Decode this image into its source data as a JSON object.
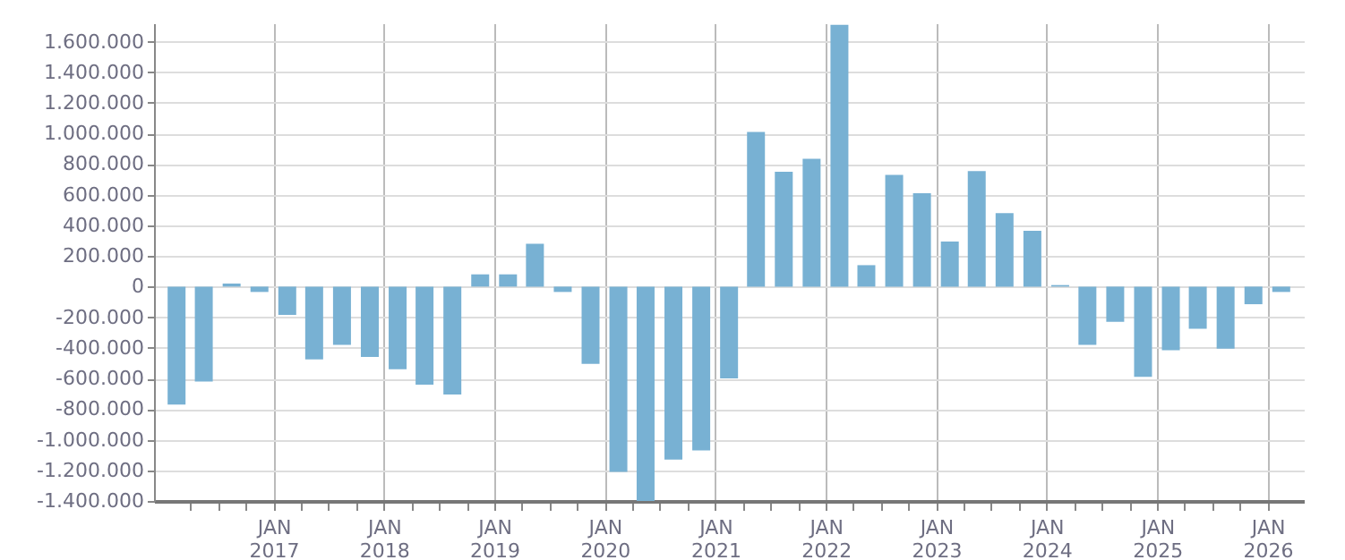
{
  "chart_data": {
    "type": "bar",
    "x": [
      "2016-02-15",
      "2016-05-15",
      "2016-08-15",
      "2016-11-15",
      "2017-02-15",
      "2017-05-15",
      "2017-08-15",
      "2017-11-15",
      "2018-02-15",
      "2018-05-15",
      "2018-08-15",
      "2018-11-15",
      "2019-02-15",
      "2019-05-15",
      "2019-08-15",
      "2019-11-15",
      "2020-02-15",
      "2020-05-15",
      "2020-08-15",
      "2020-11-15",
      "2021-02-15",
      "2021-05-15",
      "2021-08-15",
      "2021-11-15",
      "2022-02-15",
      "2022-05-15",
      "2022-08-15",
      "2022-11-15",
      "2023-02-15",
      "2023-05-15",
      "2023-08-15",
      "2023-11-15",
      "2024-02-15",
      "2024-05-15",
      "2024-08-15",
      "2024-11-15",
      "2025-02-15",
      "2025-05-15",
      "2025-08-15",
      "2025-11-15",
      "2026-02-15"
    ],
    "values": [
      -770000,
      -620000,
      20000,
      -35000,
      -185000,
      -475000,
      -380000,
      -460000,
      -540000,
      -640000,
      -705000,
      80000,
      80000,
      280000,
      -35000,
      -505000,
      -1210000,
      -1400000,
      -1130000,
      -1070000,
      -600000,
      1010000,
      750000,
      835000,
      1710000,
      140000,
      730000,
      610000,
      295000,
      755000,
      480000,
      365000,
      10000,
      -380000,
      -230000,
      -590000,
      -415000,
      -275000,
      -405000,
      -115000,
      -35000
    ],
    "color": "#78b1d3",
    "xlim": [
      "2016-01-01",
      "2026-04-01"
    ],
    "xticks": [
      {
        "value": "2016-04-01",
        "label": null
      },
      {
        "value": "2016-07-01",
        "label": null
      },
      {
        "value": "2016-10-01",
        "label": null
      },
      {
        "value": "2017-01-01",
        "label": "JAN\n2017"
      },
      {
        "value": "2017-04-01",
        "label": null
      },
      {
        "value": "2017-07-01",
        "label": null
      },
      {
        "value": "2017-10-01",
        "label": null
      },
      {
        "value": "2018-01-01",
        "label": "JAN\n2018"
      },
      {
        "value": "2018-04-01",
        "label": null
      },
      {
        "value": "2018-07-01",
        "label": null
      },
      {
        "value": "2018-10-01",
        "label": null
      },
      {
        "value": "2019-01-01",
        "label": "JAN\n2019"
      },
      {
        "value": "2019-04-01",
        "label": null
      },
      {
        "value": "2019-07-01",
        "label": null
      },
      {
        "value": "2019-10-01",
        "label": null
      },
      {
        "value": "2020-01-01",
        "label": "JAN\n2020"
      },
      {
        "value": "2020-04-01",
        "label": null
      },
      {
        "value": "2020-07-01",
        "label": null
      },
      {
        "value": "2020-10-01",
        "label": null
      },
      {
        "value": "2021-01-01",
        "label": "JAN\n2021"
      },
      {
        "value": "2021-04-01",
        "label": null
      },
      {
        "value": "2021-07-01",
        "label": null
      },
      {
        "value": "2021-10-01",
        "label": null
      },
      {
        "value": "2022-01-01",
        "label": "JAN\n2022"
      },
      {
        "value": "2022-04-01",
        "label": null
      },
      {
        "value": "2022-07-01",
        "label": null
      },
      {
        "value": "2022-10-01",
        "label": null
      },
      {
        "value": "2023-01-01",
        "label": "JAN\n2023"
      },
      {
        "value": "2023-04-01",
        "label": null
      },
      {
        "value": "2023-07-01",
        "label": null
      },
      {
        "value": "2023-10-01",
        "label": null
      },
      {
        "value": "2024-01-01",
        "label": "JAN\n2024"
      },
      {
        "value": "2024-04-01",
        "label": null
      },
      {
        "value": "2024-07-01",
        "label": null
      },
      {
        "value": "2024-10-01",
        "label": null
      },
      {
        "value": "2025-01-01",
        "label": "JAN\n2025"
      },
      {
        "value": "2025-04-01",
        "label": null
      },
      {
        "value": "2025-07-01",
        "label": null
      },
      {
        "value": "2025-10-01",
        "label": null
      },
      {
        "value": "2026-01-01",
        "label": "JAN\n2026"
      }
    ],
    "ylim": [
      -1400000,
      1720000
    ],
    "yticks": [
      {
        "value": -1400000,
        "label": "-1.400.000"
      },
      {
        "value": -1200000,
        "label": "-1.200.000"
      },
      {
        "value": -1000000,
        "label": "-1.000.000"
      },
      {
        "value": -800000,
        "label": "-800.000"
      },
      {
        "value": -600000,
        "label": "-600.000"
      },
      {
        "value": -400000,
        "label": "-400.000"
      },
      {
        "value": -200000,
        "label": "-200.000"
      },
      {
        "value": 0,
        "label": "0"
      },
      {
        "value": 200000,
        "label": "200.000"
      },
      {
        "value": 400000,
        "label": "400.000"
      },
      {
        "value": 600000,
        "label": "600.000"
      },
      {
        "value": 800000,
        "label": "800.000"
      },
      {
        "value": 1000000,
        "label": "1.000.000"
      },
      {
        "value": 1200000,
        "label": "1.200.000"
      },
      {
        "value": 1400000,
        "label": "1.400.000"
      },
      {
        "value": 1600000,
        "label": "1.600.000"
      }
    ],
    "grid": true
  }
}
